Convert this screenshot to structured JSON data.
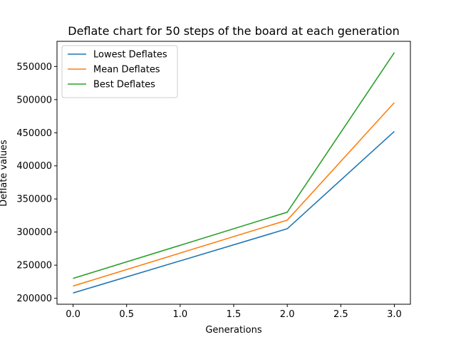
{
  "chart_data": {
    "type": "line",
    "title": "Deflate chart for 50 steps of the board at each generation",
    "xlabel": "Generations",
    "ylabel": "Deflate values",
    "xlim": [
      -0.15,
      3.15
    ],
    "ylim": [
      191000,
      588000
    ],
    "x_ticks": [
      0.0,
      0.5,
      1.0,
      1.5,
      2.0,
      2.5,
      3.0
    ],
    "x_tick_labels": [
      "0.0",
      "0.5",
      "1.0",
      "1.5",
      "2.0",
      "2.5",
      "3.0"
    ],
    "y_ticks": [
      200000,
      250000,
      300000,
      350000,
      400000,
      450000,
      500000,
      550000
    ],
    "y_tick_labels": [
      "200000",
      "250000",
      "300000",
      "350000",
      "400000",
      "450000",
      "500000",
      "550000"
    ],
    "x": [
      0,
      2,
      3
    ],
    "grid": false,
    "legend_position": "upper-left",
    "series": [
      {
        "name": "Lowest Deflates",
        "color": "#1f77b4",
        "values": [
          208000,
          305000,
          452000
        ]
      },
      {
        "name": "Mean Deflates",
        "color": "#ff7f0e",
        "values": [
          218500,
          318000,
          495500
        ]
      },
      {
        "name": "Best Deflates",
        "color": "#2ca02c",
        "values": [
          230000,
          330000,
          571000
        ]
      }
    ]
  }
}
